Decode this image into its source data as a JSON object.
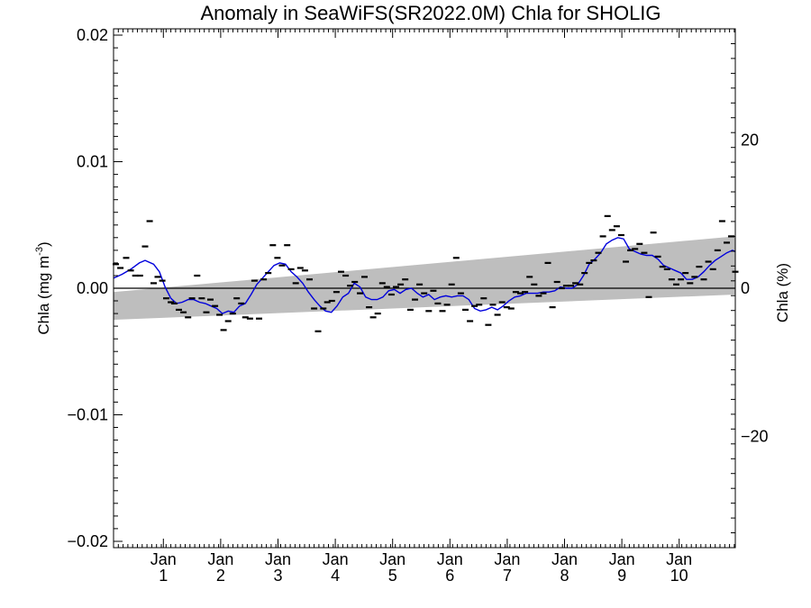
{
  "chart_data": {
    "type": "line",
    "title": "Anomaly in SeaWiFS(SR2022.0M) Chla for SHOLIG",
    "ylabel": "Chla (mg m",
    "ylabel_sup": "-3",
    "ylabel_close": ")",
    "y2label": "Chla (%)",
    "ylim": [
      -0.0205,
      0.0205
    ],
    "y2lim": [
      -35.0,
      35.0
    ],
    "xlim": [
      0,
      10.85
    ],
    "yticks": [
      {
        "value": 0.02,
        "label": "0.02"
      },
      {
        "value": 0.01,
        "label": "0.01"
      },
      {
        "value": 0.0,
        "label": "0.00"
      },
      {
        "value": -0.01,
        "label": "−0.01"
      },
      {
        "value": -0.02,
        "label": "−0.02"
      }
    ],
    "y2ticks": [
      {
        "value": 20,
        "label": "20"
      },
      {
        "value": 0,
        "label": "0"
      },
      {
        "value": -20,
        "label": "−20"
      }
    ],
    "xticks": [
      {
        "value": 0.87,
        "month": "Jan",
        "year": "1"
      },
      {
        "value": 1.87,
        "month": "Jan",
        "year": "2"
      },
      {
        "value": 2.87,
        "month": "Jan",
        "year": "3"
      },
      {
        "value": 3.87,
        "month": "Jan",
        "year": "4"
      },
      {
        "value": 4.87,
        "month": "Jan",
        "year": "5"
      },
      {
        "value": 5.87,
        "month": "Jan",
        "year": "6"
      },
      {
        "value": 6.87,
        "month": "Jan",
        "year": "7"
      },
      {
        "value": 7.87,
        "month": "Jan",
        "year": "8"
      },
      {
        "value": 8.87,
        "month": "Jan",
        "year": "9"
      },
      {
        "value": 9.87,
        "month": "Jan",
        "year": "10"
      }
    ],
    "trend_band": {
      "x": [
        0,
        10.85
      ],
      "lower": [
        -0.0025,
        -0.0005
      ],
      "upper": [
        -0.0003,
        0.0041
      ]
    },
    "zero_line": 0,
    "points": [
      [
        0.04,
        0.0019
      ],
      [
        0.12,
        0.0016
      ],
      [
        0.22,
        0.0024
      ],
      [
        0.3,
        0.0014
      ],
      [
        0.38,
        0.001
      ],
      [
        0.46,
        0.001
      ],
      [
        0.55,
        0.0033
      ],
      [
        0.63,
        0.0053
      ],
      [
        0.7,
        0.0004
      ],
      [
        0.77,
        0.0009
      ],
      [
        0.85,
        0.0006
      ],
      [
        0.92,
        -0.0008
      ],
      [
        1.0,
        -0.0011
      ],
      [
        1.06,
        -0.0012
      ],
      [
        1.14,
        -0.0017
      ],
      [
        1.22,
        -0.0019
      ],
      [
        1.3,
        -0.0023
      ],
      [
        1.37,
        -0.0008
      ],
      [
        1.46,
        0.001
      ],
      [
        1.54,
        -0.0008
      ],
      [
        1.62,
        -0.0019
      ],
      [
        1.69,
        -0.0009
      ],
      [
        1.77,
        -0.0014
      ],
      [
        1.85,
        -0.0021
      ],
      [
        1.92,
        -0.0033
      ],
      [
        2.0,
        -0.0026
      ],
      [
        2.08,
        -0.002
      ],
      [
        2.15,
        -0.0008
      ],
      [
        2.23,
        -0.0012
      ],
      [
        2.3,
        -0.0023
      ],
      [
        2.38,
        -0.0024
      ],
      [
        2.46,
        0.0006
      ],
      [
        2.54,
        -0.0024
      ],
      [
        2.62,
        0.0007
      ],
      [
        2.7,
        0.0012
      ],
      [
        2.78,
        0.0034
      ],
      [
        2.86,
        0.0024
      ],
      [
        2.94,
        0.0018
      ],
      [
        3.03,
        0.0034
      ],
      [
        3.1,
        0.0015
      ],
      [
        3.18,
        0.0004
      ],
      [
        3.26,
        0.0016
      ],
      [
        3.34,
        0.0014
      ],
      [
        3.42,
        0.0007
      ],
      [
        3.5,
        -0.0016
      ],
      [
        3.57,
        -0.0034
      ],
      [
        3.66,
        -0.0016
      ],
      [
        3.73,
        -0.0011
      ],
      [
        3.81,
        -0.001
      ],
      [
        3.89,
        -0.0003
      ],
      [
        3.97,
        0.0013
      ],
      [
        4.05,
        0.001
      ],
      [
        4.13,
        0.0002
      ],
      [
        4.21,
        0.0005
      ],
      [
        4.3,
        -0.0004
      ],
      [
        4.38,
        0.0009
      ],
      [
        4.46,
        -0.0015
      ],
      [
        4.53,
        -0.0023
      ],
      [
        4.61,
        -0.002
      ],
      [
        4.69,
        0.0004
      ],
      [
        4.77,
        0.0001
      ],
      [
        4.85,
        -0.0005
      ],
      [
        4.93,
        0.0001
      ],
      [
        5.01,
        0.0003
      ],
      [
        5.09,
        0.0007
      ],
      [
        5.18,
        -0.0017
      ],
      [
        5.26,
        -0.0009
      ],
      [
        5.34,
        0.0003
      ],
      [
        5.42,
        -0.0004
      ],
      [
        5.5,
        -0.0018
      ],
      [
        5.58,
        -0.0002
      ],
      [
        5.66,
        -0.0012
      ],
      [
        5.74,
        -0.0018
      ],
      [
        5.82,
        -0.0013
      ],
      [
        5.9,
        0.0003
      ],
      [
        5.98,
        0.0024
      ],
      [
        6.06,
        -0.0004
      ],
      [
        6.14,
        -0.0017
      ],
      [
        6.22,
        -0.0026
      ],
      [
        6.3,
        -0.0014
      ],
      [
        6.38,
        -0.0013
      ],
      [
        6.46,
        -0.0008
      ],
      [
        6.54,
        -0.0029
      ],
      [
        6.62,
        -0.0013
      ],
      [
        6.7,
        -0.0021
      ],
      [
        6.78,
        -0.0011
      ],
      [
        6.86,
        -0.0015
      ],
      [
        6.94,
        -0.0016
      ],
      [
        7.02,
        -0.0003
      ],
      [
        7.1,
        -0.0004
      ],
      [
        7.18,
        -0.0003
      ],
      [
        7.26,
        0.0009
      ],
      [
        7.34,
        0.0003
      ],
      [
        7.42,
        -0.0006
      ],
      [
        7.5,
        -0.0004
      ],
      [
        7.58,
        0.002
      ],
      [
        7.66,
        -0.0015
      ],
      [
        7.74,
        0.0005
      ],
      [
        7.82,
        0.0
      ],
      [
        7.9,
        0.0002
      ],
      [
        7.98,
        0.0002
      ],
      [
        8.06,
        0.0004
      ],
      [
        8.14,
        0.0003
      ],
      [
        8.22,
        0.0012
      ],
      [
        8.3,
        0.002
      ],
      [
        8.38,
        0.0022
      ],
      [
        8.46,
        0.0028
      ],
      [
        8.54,
        0.0041
      ],
      [
        8.62,
        0.0057
      ],
      [
        8.7,
        0.0046
      ],
      [
        8.78,
        0.0049
      ],
      [
        8.86,
        0.0042
      ],
      [
        8.94,
        0.0021
      ],
      [
        9.02,
        0.003
      ],
      [
        9.1,
        0.0031
      ],
      [
        9.18,
        0.0035
      ],
      [
        9.26,
        0.0028
      ],
      [
        9.34,
        -0.0007
      ],
      [
        9.42,
        0.0044
      ],
      [
        9.5,
        0.0025
      ],
      [
        9.58,
        0.0017
      ],
      [
        9.66,
        0.0015
      ],
      [
        9.74,
        0.0007
      ],
      [
        9.82,
        0.0003
      ],
      [
        9.9,
        0.0007
      ],
      [
        9.98,
        0.0012
      ],
      [
        10.06,
        0.0004
      ],
      [
        10.14,
        0.0009
      ],
      [
        10.22,
        0.0017
      ],
      [
        10.3,
        0.0007
      ],
      [
        10.38,
        0.0021
      ],
      [
        10.46,
        0.0015
      ],
      [
        10.54,
        0.003
      ],
      [
        10.62,
        0.0053
      ],
      [
        10.7,
        0.0036
      ],
      [
        10.78,
        0.0041
      ],
      [
        10.85,
        0.0013
      ]
    ],
    "smooth": [
      [
        0.0,
        0.0008
      ],
      [
        0.15,
        0.0011
      ],
      [
        0.3,
        0.0015
      ],
      [
        0.45,
        0.002
      ],
      [
        0.55,
        0.0022
      ],
      [
        0.7,
        0.0019
      ],
      [
        0.8,
        0.0013
      ],
      [
        0.9,
        0.0001
      ],
      [
        1.0,
        -0.0008
      ],
      [
        1.1,
        -0.0012
      ],
      [
        1.2,
        -0.0011
      ],
      [
        1.3,
        -0.0009
      ],
      [
        1.4,
        -0.0009
      ],
      [
        1.5,
        -0.0011
      ],
      [
        1.6,
        -0.0012
      ],
      [
        1.7,
        -0.0014
      ],
      [
        1.8,
        -0.0016
      ],
      [
        1.9,
        -0.002
      ],
      [
        2.0,
        -0.0018
      ],
      [
        2.1,
        -0.0019
      ],
      [
        2.2,
        -0.0014
      ],
      [
        2.3,
        -0.0012
      ],
      [
        2.4,
        -0.0005
      ],
      [
        2.5,
        0.0003
      ],
      [
        2.6,
        0.0008
      ],
      [
        2.7,
        0.0013
      ],
      [
        2.8,
        0.0018
      ],
      [
        2.9,
        0.002
      ],
      [
        3.0,
        0.0019
      ],
      [
        3.1,
        0.0013
      ],
      [
        3.2,
        0.0009
      ],
      [
        3.3,
        0.0004
      ],
      [
        3.4,
        -0.0003
      ],
      [
        3.5,
        -0.0009
      ],
      [
        3.6,
        -0.0014
      ],
      [
        3.7,
        -0.0018
      ],
      [
        3.8,
        -0.0019
      ],
      [
        3.9,
        -0.0014
      ],
      [
        4.0,
        -0.0007
      ],
      [
        4.1,
        -0.0004
      ],
      [
        4.2,
        0.0004
      ],
      [
        4.3,
        0.0001
      ],
      [
        4.4,
        -0.0007
      ],
      [
        4.5,
        -0.0009
      ],
      [
        4.6,
        -0.0009
      ],
      [
        4.7,
        -0.0007
      ],
      [
        4.8,
        -0.0002
      ],
      [
        4.9,
        -0.0001
      ],
      [
        5.0,
        -0.0004
      ],
      [
        5.1,
        -0.0001
      ],
      [
        5.2,
        0.0
      ],
      [
        5.3,
        -0.0004
      ],
      [
        5.4,
        -0.0007
      ],
      [
        5.5,
        -0.0005
      ],
      [
        5.6,
        -0.0009
      ],
      [
        5.7,
        -0.0007
      ],
      [
        5.8,
        -0.0006
      ],
      [
        5.9,
        -0.0007
      ],
      [
        6.0,
        -0.0006
      ],
      [
        6.1,
        -0.0006
      ],
      [
        6.2,
        -0.0009
      ],
      [
        6.3,
        -0.0016
      ],
      [
        6.4,
        -0.0018
      ],
      [
        6.5,
        -0.0017
      ],
      [
        6.6,
        -0.0015
      ],
      [
        6.7,
        -0.0017
      ],
      [
        6.8,
        -0.0014
      ],
      [
        6.9,
        -0.001
      ],
      [
        7.0,
        -0.0007
      ],
      [
        7.1,
        -0.0006
      ],
      [
        7.2,
        -0.0004
      ],
      [
        7.3,
        -0.0004
      ],
      [
        7.4,
        -0.0004
      ],
      [
        7.5,
        -0.0003
      ],
      [
        7.6,
        -0.0003
      ],
      [
        7.7,
        -0.0002
      ],
      [
        7.8,
        0.0001
      ],
      [
        7.9,
        0.0
      ],
      [
        8.0,
        0.0
      ],
      [
        8.1,
        0.0003
      ],
      [
        8.2,
        0.001
      ],
      [
        8.3,
        0.0019
      ],
      [
        8.4,
        0.0023
      ],
      [
        8.5,
        0.0028
      ],
      [
        8.6,
        0.0035
      ],
      [
        8.7,
        0.0038
      ],
      [
        8.8,
        0.004
      ],
      [
        8.9,
        0.0039
      ],
      [
        9.0,
        0.0031
      ],
      [
        9.1,
        0.0029
      ],
      [
        9.2,
        0.0027
      ],
      [
        9.3,
        0.0026
      ],
      [
        9.4,
        0.0026
      ],
      [
        9.5,
        0.0023
      ],
      [
        9.6,
        0.0018
      ],
      [
        9.7,
        0.0016
      ],
      [
        9.8,
        0.0014
      ],
      [
        9.9,
        0.0012
      ],
      [
        10.0,
        0.0007
      ],
      [
        10.1,
        0.0007
      ],
      [
        10.2,
        0.0009
      ],
      [
        10.3,
        0.0013
      ],
      [
        10.4,
        0.0018
      ],
      [
        10.5,
        0.0022
      ],
      [
        10.6,
        0.0025
      ],
      [
        10.7,
        0.0028
      ],
      [
        10.8,
        0.003
      ],
      [
        10.85,
        0.0029
      ]
    ],
    "colors": {
      "band": "#bebebe",
      "smooth": "#0000dd",
      "points": "#000000",
      "zero": "#000000",
      "frame": "#000000"
    },
    "grid": false
  }
}
